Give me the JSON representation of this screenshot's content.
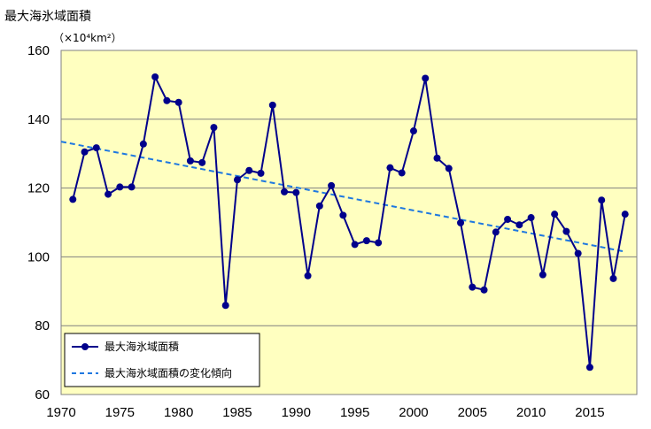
{
  "chart_data": {
    "type": "line",
    "title": "最大海氷域面積",
    "unit": "（×10⁴km²）",
    "xlim": [
      1970,
      2019
    ],
    "ylim": [
      60,
      160
    ],
    "x_ticks": [
      "1970",
      "1975",
      "1980",
      "1985",
      "1990",
      "1995",
      "2000",
      "2005",
      "2010",
      "2015"
    ],
    "y_ticks": [
      "60",
      "80",
      "100",
      "120",
      "140",
      "160"
    ],
    "grid": true,
    "series": [
      {
        "name": "最大海氷域面積",
        "color": "#00008b",
        "x": [
          1971,
          1972,
          1973,
          1974,
          1975,
          1976,
          1977,
          1978,
          1979,
          1980,
          1981,
          1982,
          1983,
          1984,
          1985,
          1986,
          1987,
          1988,
          1989,
          1990,
          1991,
          1992,
          1993,
          1994,
          1995,
          1996,
          1997,
          1998,
          1999,
          2000,
          2001,
          2002,
          2003,
          2004,
          2005,
          2006,
          2007,
          2008,
          2009,
          2010,
          2011,
          2012,
          2013,
          2014,
          2015,
          2016,
          2017,
          2018
        ],
        "values": [
          116.7,
          130.5,
          131.7,
          118.2,
          120.3,
          120.3,
          132.8,
          152.3,
          145.4,
          144.9,
          127.9,
          127.4,
          137.6,
          85.9,
          122.4,
          125.1,
          124.3,
          144.1,
          118.9,
          118.7,
          94.5,
          114.8,
          120.7,
          112.1,
          103.6,
          104.7,
          104.1,
          125.9,
          124.4,
          136.6,
          151.9,
          128.7,
          125.7,
          109.9,
          91.2,
          90.4,
          107.2,
          110.9,
          109.3,
          111.4,
          94.8,
          112.4,
          107.4,
          101.0,
          67.9,
          116.5,
          93.7,
          112.4
        ]
      },
      {
        "name": "最大海氷域面積の変化傾向",
        "color": "#1e78e0",
        "style": "dashed",
        "x": [
          1970,
          2018
        ],
        "values": [
          133.5,
          101.5
        ]
      }
    ]
  }
}
